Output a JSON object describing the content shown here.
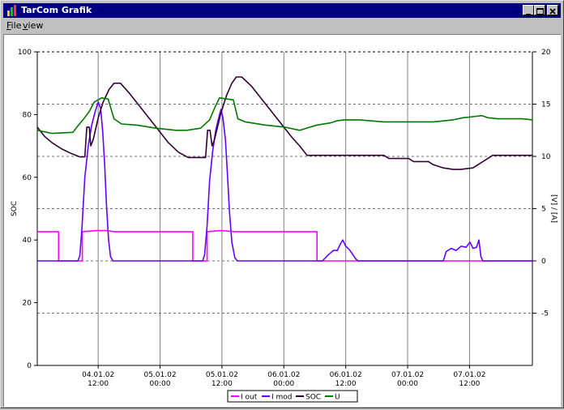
{
  "window": {
    "title": "TarCom Grafik"
  },
  "menu": [
    {
      "label": "File",
      "accel": "F",
      "rest": "ile"
    },
    {
      "label": "view",
      "accel": "v",
      "rest": "iew"
    }
  ],
  "chart_data": {
    "type": "line",
    "xlabel": "",
    "ylabel": "SOC",
    "y2label": "[V] / [A]",
    "ylim": [
      0,
      100
    ],
    "y2lim": [
      -10,
      20
    ],
    "xlim": [
      0,
      100
    ],
    "grid": true,
    "legend_position": "bottom",
    "y_ticks": [
      "0",
      "20",
      "40",
      "60",
      "80",
      "100"
    ],
    "y2_ticks": [
      "-5",
      "0",
      "5",
      "10",
      "15",
      "20"
    ],
    "x_ticks": [
      {
        "x": 12.3,
        "date": "04.01.02",
        "time": "12:00"
      },
      {
        "x": 24.8,
        "date": "05.01.02",
        "time": "00:00"
      },
      {
        "x": 37.3,
        "date": "05.01.02",
        "time": "12:00"
      },
      {
        "x": 49.8,
        "date": "06.01.02",
        "time": "00:00"
      },
      {
        "x": 62.3,
        "date": "06.01.02",
        "time": "12:00"
      },
      {
        "x": 74.8,
        "date": "07.01.02",
        "time": "00:00"
      },
      {
        "x": 87.3,
        "date": "07.01.02",
        "time": "12:00"
      }
    ],
    "series": [
      {
        "name": "I out",
        "axis": "right",
        "color": "#ff00ff",
        "points": [
          [
            0,
            2.8
          ],
          [
            4.3,
            2.8
          ],
          [
            4.3,
            0
          ],
          [
            9.1,
            0
          ],
          [
            9.1,
            2.8
          ],
          [
            12.0,
            2.9
          ],
          [
            14.0,
            2.9
          ],
          [
            15.6,
            2.8
          ],
          [
            31.4,
            2.8
          ],
          [
            31.4,
            0
          ],
          [
            34.3,
            0
          ],
          [
            34.3,
            2.8
          ],
          [
            37.0,
            2.9
          ],
          [
            40,
            2.8
          ],
          [
            56.5,
            2.8
          ],
          [
            56.5,
            0
          ],
          [
            100,
            0
          ]
        ]
      },
      {
        "name": "I mod",
        "axis": "right",
        "color": "#6600ff",
        "points": [
          [
            0,
            0
          ],
          [
            8.2,
            0
          ],
          [
            8.6,
            0.5
          ],
          [
            9.0,
            3
          ],
          [
            9.6,
            8
          ],
          [
            10.3,
            11
          ],
          [
            11.0,
            13
          ],
          [
            11.7,
            14.3
          ],
          [
            12.3,
            15.2
          ],
          [
            12.8,
            14.6
          ],
          [
            13.2,
            12.4
          ],
          [
            13.6,
            9.3
          ],
          [
            14.0,
            5.2
          ],
          [
            14.4,
            2
          ],
          [
            14.8,
            0.4
          ],
          [
            15.3,
            0
          ],
          [
            33.4,
            0
          ],
          [
            33.8,
            0.6
          ],
          [
            34.3,
            3.4
          ],
          [
            34.8,
            7.6
          ],
          [
            35.4,
            10.4
          ],
          [
            36.0,
            12.4
          ],
          [
            36.6,
            13.6
          ],
          [
            37.1,
            14.5
          ],
          [
            37.5,
            13.7
          ],
          [
            38.0,
            11.6
          ],
          [
            38.4,
            8.4
          ],
          [
            38.8,
            4.8
          ],
          [
            39.3,
            1.8
          ],
          [
            39.9,
            0.3
          ],
          [
            40.4,
            0
          ],
          [
            57.6,
            0
          ],
          [
            58.8,
            0.6
          ],
          [
            59.8,
            1.0
          ],
          [
            60.6,
            1.0
          ],
          [
            61.2,
            1.6
          ],
          [
            61.7,
            2.0
          ],
          [
            62.3,
            1.4
          ],
          [
            63.0,
            1.1
          ],
          [
            63.6,
            0.7
          ],
          [
            64.3,
            0.2
          ],
          [
            64.8,
            0
          ],
          [
            82.0,
            0
          ],
          [
            82.6,
            0.9
          ],
          [
            83.6,
            1.2
          ],
          [
            84.6,
            1.0
          ],
          [
            85.6,
            1.4
          ],
          [
            86.6,
            1.3
          ],
          [
            87.4,
            1.8
          ],
          [
            88.0,
            1.2
          ],
          [
            88.7,
            1.3
          ],
          [
            89.2,
            2.0
          ],
          [
            89.6,
            0.4
          ],
          [
            90.0,
            0
          ],
          [
            100,
            0
          ]
        ]
      },
      {
        "name": "SOC",
        "axis": "left",
        "color": "#330033",
        "points": [
          [
            0,
            76
          ],
          [
            1.5,
            73
          ],
          [
            3.0,
            71
          ],
          [
            5.0,
            69
          ],
          [
            7.0,
            67.5
          ],
          [
            8.6,
            66.5
          ],
          [
            9.6,
            66.5
          ],
          [
            10.0,
            76
          ],
          [
            10.5,
            76
          ],
          [
            10.8,
            70
          ],
          [
            11.3,
            72
          ],
          [
            12.3,
            79
          ],
          [
            13.3,
            84
          ],
          [
            14.5,
            88
          ],
          [
            15.5,
            90
          ],
          [
            16.8,
            90
          ],
          [
            18.5,
            87
          ],
          [
            20.5,
            83
          ],
          [
            22.5,
            79
          ],
          [
            24.5,
            75
          ],
          [
            26.5,
            71
          ],
          [
            28.5,
            68
          ],
          [
            30.5,
            66.3
          ],
          [
            34.0,
            66.3
          ],
          [
            34.4,
            75
          ],
          [
            34.9,
            75
          ],
          [
            35.3,
            70
          ],
          [
            35.8,
            72
          ],
          [
            37.0,
            80
          ],
          [
            38.2,
            86
          ],
          [
            39.3,
            90
          ],
          [
            40.2,
            92
          ],
          [
            41.3,
            92
          ],
          [
            43.3,
            89
          ],
          [
            45.3,
            85
          ],
          [
            47.3,
            81
          ],
          [
            49.3,
            77
          ],
          [
            51.3,
            73
          ],
          [
            53.0,
            70
          ],
          [
            54.5,
            67
          ],
          [
            56.5,
            67
          ],
          [
            70.0,
            67
          ],
          [
            71,
            66
          ],
          [
            75,
            66
          ],
          [
            76,
            65
          ],
          [
            79,
            65
          ],
          [
            80,
            64
          ],
          [
            82,
            63
          ],
          [
            84,
            62.5
          ],
          [
            85.5,
            62.5
          ],
          [
            88,
            63
          ],
          [
            89,
            64
          ],
          [
            90,
            65
          ],
          [
            91,
            66
          ],
          [
            92,
            67
          ],
          [
            100,
            67
          ]
        ]
      },
      {
        "name": "U",
        "axis": "right",
        "color": "#007700",
        "points": [
          [
            0,
            12.5
          ],
          [
            3.0,
            12.2
          ],
          [
            7.2,
            12.3
          ],
          [
            8.0,
            12.8
          ],
          [
            9.4,
            13.6
          ],
          [
            10.5,
            14.3
          ],
          [
            11.5,
            15.2
          ],
          [
            13.0,
            15.6
          ],
          [
            14.3,
            15.5
          ],
          [
            15.5,
            13.6
          ],
          [
            17.0,
            13.1
          ],
          [
            20,
            13
          ],
          [
            24,
            12.7
          ],
          [
            28,
            12.5
          ],
          [
            30.2,
            12.5
          ],
          [
            33.0,
            12.7
          ],
          [
            34.8,
            13.5
          ],
          [
            35.8,
            14.6
          ],
          [
            36.8,
            15.6
          ],
          [
            39.6,
            15.4
          ],
          [
            40.5,
            13.6
          ],
          [
            42,
            13.3
          ],
          [
            46,
            13.0
          ],
          [
            50,
            12.8
          ],
          [
            53,
            12.5
          ],
          [
            56.5,
            13
          ],
          [
            59.2,
            13.2
          ],
          [
            60.5,
            13.4
          ],
          [
            62,
            13.5
          ],
          [
            65,
            13.5
          ],
          [
            70,
            13.3
          ],
          [
            75,
            13.3
          ],
          [
            80,
            13.3
          ],
          [
            84,
            13.5
          ],
          [
            86,
            13.7
          ],
          [
            88,
            13.8
          ],
          [
            89.8,
            13.9
          ],
          [
            91,
            13.7
          ],
          [
            93,
            13.6
          ],
          [
            98,
            13.6
          ],
          [
            100,
            13.5
          ]
        ]
      }
    ]
  }
}
